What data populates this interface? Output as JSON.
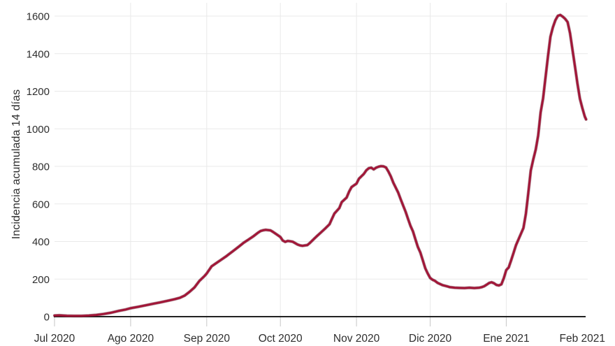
{
  "chart_data": {
    "type": "line",
    "title": "",
    "xlabel": "",
    "ylabel": "Incidencia acumulada 14 días",
    "ylim": [
      0,
      1600
    ],
    "y_ticks": [
      0,
      200,
      400,
      600,
      800,
      1000,
      1200,
      1400,
      1600
    ],
    "x_ticks": [
      {
        "label": "Jul 2020",
        "day": 0
      },
      {
        "label": "Ago 2020",
        "day": 31
      },
      {
        "label": "Sep 2020",
        "day": 62
      },
      {
        "label": "Oct 2020",
        "day": 92
      },
      {
        "label": "Nov 2020",
        "day": 123
      },
      {
        "label": "Dic 2020",
        "day": 153
      },
      {
        "label": "Ene 2021",
        "day": 184
      },
      {
        "label": "Feb 2021",
        "day": 215
      }
    ],
    "x_scale_note": "day 0 = 1 Jul 2020",
    "grid": true,
    "legend_position": "none",
    "colors": {
      "line": "#a21638",
      "line_edge": "#4f0e1f",
      "grid": "#e9e9e9",
      "axis": "#222222",
      "tick": "#c6c6c6",
      "text": "#2e2e2e",
      "background": "#ffffff"
    },
    "series": [
      {
        "name": "Incidencia acumulada 14 días",
        "points": [
          [
            0,
            6
          ],
          [
            2,
            7
          ],
          [
            5,
            5
          ],
          [
            8,
            4
          ],
          [
            11,
            4
          ],
          [
            14,
            6
          ],
          [
            17,
            9
          ],
          [
            20,
            14
          ],
          [
            23,
            21
          ],
          [
            26,
            30
          ],
          [
            29,
            38
          ],
          [
            31,
            45
          ],
          [
            34,
            52
          ],
          [
            37,
            60
          ],
          [
            40,
            68
          ],
          [
            43,
            76
          ],
          [
            46,
            84
          ],
          [
            49,
            93
          ],
          [
            51,
            100
          ],
          [
            53,
            112
          ],
          [
            55,
            132
          ],
          [
            57,
            155
          ],
          [
            59,
            190
          ],
          [
            61,
            215
          ],
          [
            62,
            230
          ],
          [
            64,
            268
          ],
          [
            66,
            286
          ],
          [
            68,
            304
          ],
          [
            70,
            322
          ],
          [
            71,
            332
          ],
          [
            73,
            352
          ],
          [
            75,
            372
          ],
          [
            77,
            393
          ],
          [
            79,
            410
          ],
          [
            81,
            428
          ],
          [
            83,
            448
          ],
          [
            84,
            456
          ],
          [
            85,
            460
          ],
          [
            86,
            462
          ],
          [
            88,
            459
          ],
          [
            89,
            451
          ],
          [
            91,
            433
          ],
          [
            92,
            424
          ],
          [
            93,
            405
          ],
          [
            94,
            398
          ],
          [
            95,
            403
          ],
          [
            96,
            401
          ],
          [
            97,
            399
          ],
          [
            99,
            384
          ],
          [
            100,
            379
          ],
          [
            101,
            377
          ],
          [
            103,
            381
          ],
          [
            104,
            392
          ],
          [
            106,
            418
          ],
          [
            107,
            430
          ],
          [
            108,
            442
          ],
          [
            110,
            466
          ],
          [
            112,
            492
          ],
          [
            113,
            521
          ],
          [
            114,
            549
          ],
          [
            116,
            578
          ],
          [
            117,
            610
          ],
          [
            119,
            634
          ],
          [
            120,
            666
          ],
          [
            121,
            690
          ],
          [
            123,
            708
          ],
          [
            124,
            734
          ],
          [
            126,
            760
          ],
          [
            127,
            779
          ],
          [
            128,
            790
          ],
          [
            129,
            793
          ],
          [
            130,
            784
          ],
          [
            131,
            793
          ],
          [
            132,
            798
          ],
          [
            133,
            801
          ],
          [
            134,
            800
          ],
          [
            135,
            794
          ],
          [
            136,
            772
          ],
          [
            137,
            746
          ],
          [
            138,
            713
          ],
          [
            140,
            660
          ],
          [
            141,
            625
          ],
          [
            142,
            592
          ],
          [
            143,
            558
          ],
          [
            144,
            520
          ],
          [
            145,
            483
          ],
          [
            146,
            454
          ],
          [
            147,
            412
          ],
          [
            148,
            371
          ],
          [
            149,
            342
          ],
          [
            150,
            300
          ],
          [
            151,
            258
          ],
          [
            152,
            230
          ],
          [
            153,
            206
          ],
          [
            154,
            196
          ],
          [
            155,
            190
          ],
          [
            156,
            180
          ],
          [
            158,
            168
          ],
          [
            160,
            161
          ],
          [
            161,
            157
          ],
          [
            163,
            154
          ],
          [
            165,
            153
          ],
          [
            167,
            152
          ],
          [
            169,
            154
          ],
          [
            171,
            152
          ],
          [
            173,
            154
          ],
          [
            174,
            157
          ],
          [
            175,
            162
          ],
          [
            176,
            170
          ],
          [
            177,
            179
          ],
          [
            178,
            183
          ],
          [
            179,
            178
          ],
          [
            180,
            169
          ],
          [
            181,
            166
          ],
          [
            182,
            172
          ],
          [
            183,
            205
          ],
          [
            184,
            248
          ],
          [
            185,
            262
          ],
          [
            186,
            300
          ],
          [
            187,
            340
          ],
          [
            188,
            381
          ],
          [
            189,
            412
          ],
          [
            190,
            442
          ],
          [
            191,
            472
          ],
          [
            192,
            548
          ],
          [
            193,
            660
          ],
          [
            194,
            778
          ],
          [
            195,
            836
          ],
          [
            196,
            890
          ],
          [
            197,
            965
          ],
          [
            198,
            1088
          ],
          [
            199,
            1162
          ],
          [
            200,
            1274
          ],
          [
            201,
            1386
          ],
          [
            202,
            1490
          ],
          [
            203,
            1540
          ],
          [
            204,
            1578
          ],
          [
            205,
            1601
          ],
          [
            206,
            1606
          ],
          [
            207,
            1597
          ],
          [
            208,
            1585
          ],
          [
            209,
            1568
          ],
          [
            210,
            1508
          ],
          [
            211,
            1420
          ],
          [
            212,
            1330
          ],
          [
            213,
            1240
          ],
          [
            214,
            1160
          ],
          [
            215,
            1110
          ],
          [
            216,
            1065
          ],
          [
            216.5,
            1050
          ]
        ]
      }
    ]
  }
}
